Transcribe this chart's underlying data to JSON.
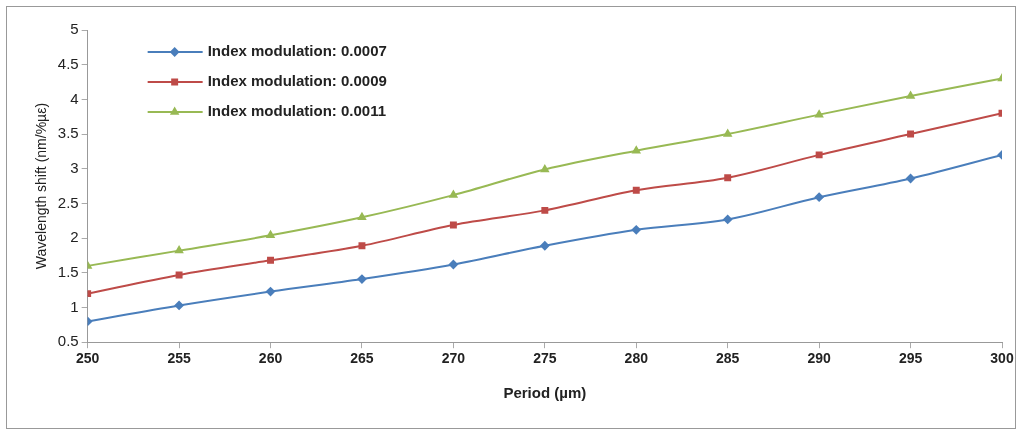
{
  "chart_data": {
    "type": "line",
    "xlabel": "Period (µm)",
    "ylabel": "Wavelength shift (nm/%µε)",
    "x": [
      250,
      255,
      260,
      265,
      270,
      275,
      280,
      285,
      290,
      295,
      300
    ],
    "xlim": [
      250,
      300
    ],
    "xticks": [
      250,
      255,
      260,
      265,
      270,
      275,
      280,
      285,
      290,
      295,
      300
    ],
    "ylim": [
      0.5,
      5
    ],
    "yticks": [
      0.5,
      1,
      1.5,
      2,
      2.5,
      3,
      3.5,
      4,
      4.5,
      5
    ],
    "grid": false,
    "legend": "top left",
    "series": [
      {
        "name": "Index modulation: 0.0007",
        "color": "#4a7ebb",
        "marker": "diamond",
        "values": [
          0.8,
          1.03,
          1.23,
          1.41,
          1.62,
          1.89,
          2.12,
          2.27,
          2.59,
          2.86,
          3.2
        ]
      },
      {
        "name": "Index modulation: 0.0009",
        "color": "#be4b48",
        "marker": "square",
        "values": [
          1.2,
          1.47,
          1.68,
          1.89,
          2.19,
          2.4,
          2.69,
          2.87,
          3.2,
          3.5,
          3.8
        ]
      },
      {
        "name": "Index modulation: 0.0011",
        "color": "#98b954",
        "marker": "triangle",
        "values": [
          1.6,
          1.82,
          2.04,
          2.3,
          2.62,
          2.99,
          3.26,
          3.5,
          3.78,
          4.05,
          4.3
        ]
      }
    ]
  }
}
